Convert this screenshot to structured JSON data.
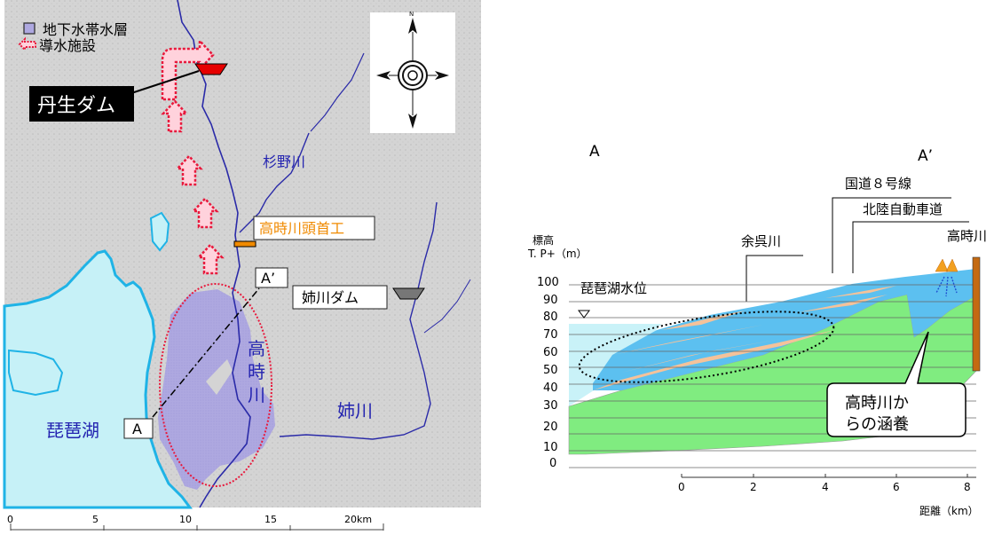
{
  "map": {
    "legend": {
      "aquifer": "地下水帯水層",
      "conduit": "導水施設"
    },
    "labels": {
      "nyu_dam": "丹生ダム",
      "sugino_river": "杉野川",
      "takatoki_weir": "高時川頭首工",
      "anegawa_dam": "姉川ダム",
      "takatoki_river_chars": [
        "高",
        "時",
        "川"
      ],
      "anegawa_river": "姉川",
      "biwa_lake": "琵琶湖",
      "point_a": "A",
      "point_a_prime": "A’",
      "compass_north": "N"
    },
    "scale": {
      "ticks": [
        "0",
        "5",
        "10",
        "15",
        "20km"
      ]
    },
    "colors": {
      "lake": "#c6f1f7",
      "lake_shore": "#1fb3e6",
      "aquifer": "#aea8e0",
      "conduit": "#e8193c",
      "dam_nyu": "#e60000",
      "dam_ane": "#777777",
      "weir": "#f08a00",
      "river": "#2a2aa8"
    }
  },
  "section": {
    "label_a": "A",
    "label_a_prime": "A’",
    "road_route8": "国道８号線",
    "road_expressway": "北陸自動車道",
    "river_takatoki": "高時川",
    "river_yogo": "余呉川",
    "lake_level": "琵琶湖水位",
    "ylabel_line1": "標高",
    "ylabel_line2": "T. P+（m）",
    "xlabel": "距離（km）",
    "yticks": [
      "100",
      "90",
      "80",
      "70",
      "60",
      "50",
      "40",
      "30",
      "20",
      "10",
      "0"
    ],
    "xticks": [
      "0",
      "2",
      "4",
      "6",
      "8"
    ],
    "callout_line1": "高時川か",
    "callout_line2": "らの涵養",
    "colors": {
      "water": "#5cc0f0",
      "sand": "#f5c29a",
      "bedrock": "#80ec80",
      "lake": "#c9f2f8",
      "wall": "#c46a12"
    }
  }
}
